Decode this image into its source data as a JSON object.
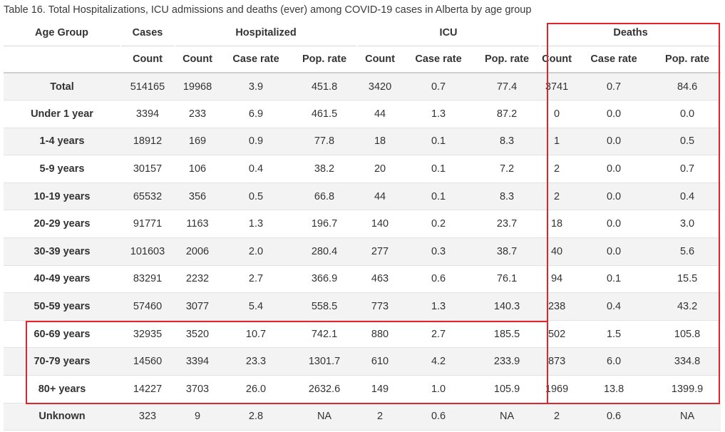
{
  "caption": "Table 16. Total Hospitalizations, ICU admissions and deaths (ever) among COVID-19 cases in Alberta by age group",
  "header": {
    "age_group": "Age Group",
    "cases": "Cases",
    "hospitalized": "Hospitalized",
    "icu": "ICU",
    "deaths": "Deaths",
    "count": "Count",
    "case_rate": "Case rate",
    "pop_rate": "Pop. rate"
  },
  "rows": [
    [
      "Total",
      "514165",
      "19968",
      "3.9",
      "451.8",
      "3420",
      "0.7",
      "77.4",
      "3741",
      "0.7",
      "84.6"
    ],
    [
      "Under 1 year",
      "3394",
      "233",
      "6.9",
      "461.5",
      "44",
      "1.3",
      "87.2",
      "0",
      "0.0",
      "0.0"
    ],
    [
      "1-4 years",
      "18912",
      "169",
      "0.9",
      "77.8",
      "18",
      "0.1",
      "8.3",
      "1",
      "0.0",
      "0.5"
    ],
    [
      "5-9 years",
      "30157",
      "106",
      "0.4",
      "38.2",
      "20",
      "0.1",
      "7.2",
      "2",
      "0.0",
      "0.7"
    ],
    [
      "10-19 years",
      "65532",
      "356",
      "0.5",
      "66.8",
      "44",
      "0.1",
      "8.3",
      "2",
      "0.0",
      "0.4"
    ],
    [
      "20-29 years",
      "91771",
      "1163",
      "1.3",
      "196.7",
      "140",
      "0.2",
      "23.7",
      "18",
      "0.0",
      "3.0"
    ],
    [
      "30-39 years",
      "101603",
      "2006",
      "2.0",
      "280.4",
      "277",
      "0.3",
      "38.7",
      "40",
      "0.0",
      "5.6"
    ],
    [
      "40-49 years",
      "83291",
      "2232",
      "2.7",
      "366.9",
      "463",
      "0.6",
      "76.1",
      "94",
      "0.1",
      "15.5"
    ],
    [
      "50-59 years",
      "57460",
      "3077",
      "5.4",
      "558.5",
      "773",
      "1.3",
      "140.3",
      "238",
      "0.4",
      "43.2"
    ],
    [
      "60-69 years",
      "32935",
      "3520",
      "10.7",
      "742.1",
      "880",
      "2.7",
      "185.5",
      "502",
      "1.5",
      "105.8"
    ],
    [
      "70-79 years",
      "14560",
      "3394",
      "23.3",
      "1301.7",
      "610",
      "4.2",
      "233.9",
      "873",
      "6.0",
      "334.8"
    ],
    [
      "80+ years",
      "14227",
      "3703",
      "26.0",
      "2632.6",
      "149",
      "1.0",
      "105.9",
      "1969",
      "13.8",
      "1399.9"
    ],
    [
      "Unknown",
      "323",
      "9",
      "2.8",
      "NA",
      "2",
      "0.6",
      "NA",
      "2",
      "0.6",
      "NA"
    ]
  ],
  "highlight_color": "#e0242a"
}
